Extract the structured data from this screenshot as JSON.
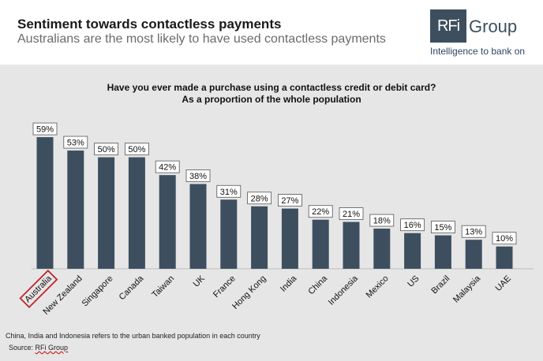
{
  "header": {
    "title": "Sentiment towards contactless payments",
    "subtitle": "Australians are the most likely to have used contactless payments"
  },
  "logo": {
    "mark": "RFi",
    "word": "Group",
    "tagline": "Intelligence to bank on",
    "color": "#3d4f5f"
  },
  "chart_data": {
    "type": "bar",
    "title": "Have you ever made a purchase using a contactless credit or debit card?",
    "subtitle": "As a proportion of the whole population",
    "categories": [
      "Australia",
      "New Zealand",
      "Singapore",
      "Canada",
      "Taiwan",
      "UK",
      "France",
      "Hong Kong",
      "India",
      "China",
      "Indonesia",
      "Mexico",
      "US",
      "Brazil",
      "Malaysia",
      "UAE"
    ],
    "values": [
      59,
      53,
      50,
      50,
      42,
      38,
      31,
      28,
      27,
      22,
      21,
      18,
      16,
      15,
      13,
      10
    ],
    "data_labels": [
      "59%",
      "53%",
      "50%",
      "50%",
      "42%",
      "38%",
      "31%",
      "28%",
      "27%",
      "22%",
      "21%",
      "18%",
      "16%",
      "15%",
      "13%",
      "10%"
    ],
    "highlighted_category": "Australia",
    "bar_color": "#3d4f5f",
    "highlight_color": "#c0262c",
    "background_color": "#e6e6e6",
    "ylim": [
      0,
      60
    ],
    "grid": false,
    "legend": "none"
  },
  "footnote": "China, India and Indonesia refers to the urban banked population in each country",
  "source": {
    "prefix": "Source:",
    "text": "RFi Group"
  }
}
